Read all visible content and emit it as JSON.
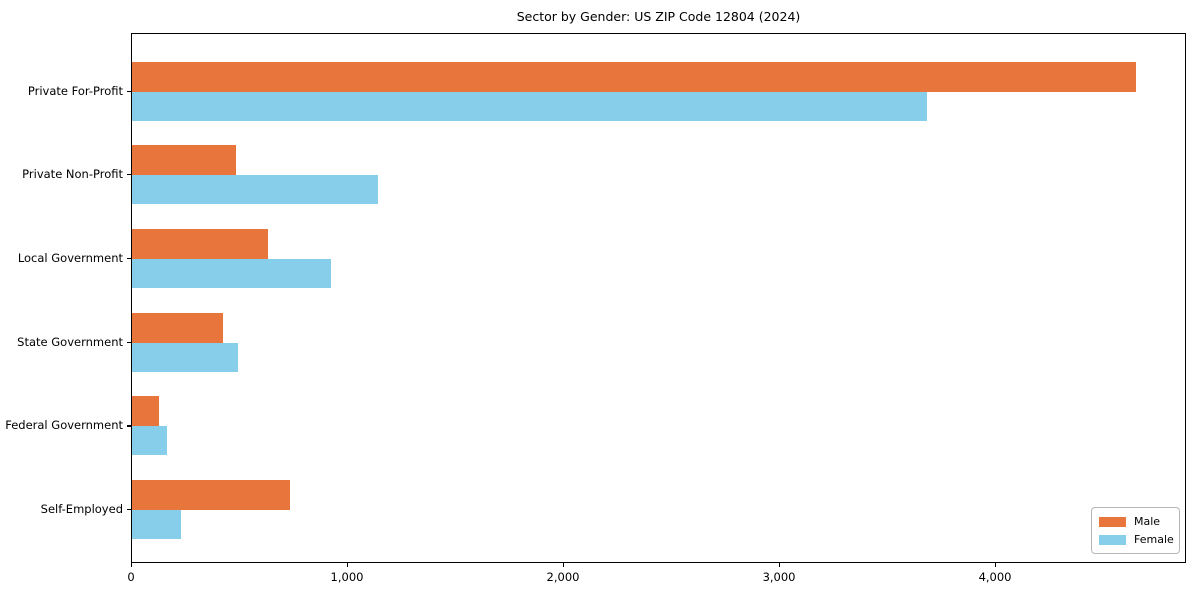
{
  "chart_data": {
    "type": "bar",
    "orientation": "horizontal",
    "title": "Sector by Gender: US ZIP Code 12804 (2024)",
    "categories": [
      "Private For-Profit",
      "Private Non-Profit",
      "Local Government",
      "State Government",
      "Federal Government",
      "Self-Employed"
    ],
    "series": [
      {
        "name": "Male",
        "color": "#E8763C",
        "values": [
          4650,
          480,
          630,
          420,
          125,
          730
        ]
      },
      {
        "name": "Female",
        "color": "#87CEEB",
        "values": [
          3680,
          1140,
          920,
          490,
          160,
          225
        ]
      }
    ],
    "xlim": [
      0,
      4884
    ],
    "x_ticks": [
      0,
      1000,
      2000,
      3000,
      4000
    ],
    "x_tick_labels": [
      "0",
      "1,000",
      "2,000",
      "3,000",
      "4,000"
    ],
    "xlabel": "",
    "ylabel": "",
    "grid": false,
    "legend_position": "lower right",
    "axis_color": "#000000",
    "background_color": "#ffffff"
  }
}
